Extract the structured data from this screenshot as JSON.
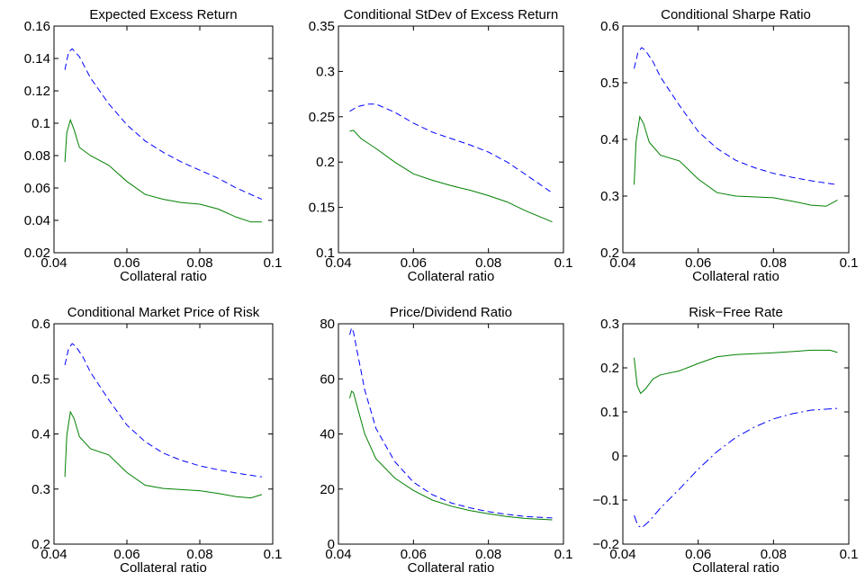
{
  "chart_data": [
    {
      "type": "line",
      "title": "Expected Excess Return",
      "xlabel": "Collateral ratio",
      "ylabel": "",
      "xlim": [
        0.04,
        0.1
      ],
      "ylim": [
        0.02,
        0.16
      ],
      "xticks": [
        "0.04",
        "0.06",
        "0.08",
        "0.1"
      ],
      "yticks": [
        "0.02",
        "0.04",
        "0.06",
        "0.08",
        "0.1",
        "0.12",
        "0.14",
        "0.16"
      ],
      "grid": false,
      "series": [
        {
          "style": "dashed",
          "color": "#0000ff",
          "points": [
            [
              0.043,
              0.133
            ],
            [
              0.044,
              0.144
            ],
            [
              0.045,
              0.146
            ],
            [
              0.047,
              0.141
            ],
            [
              0.05,
              0.128
            ],
            [
              0.055,
              0.112
            ],
            [
              0.06,
              0.099
            ],
            [
              0.065,
              0.089
            ],
            [
              0.07,
              0.082
            ],
            [
              0.075,
              0.076
            ],
            [
              0.08,
              0.071
            ],
            [
              0.085,
              0.066
            ],
            [
              0.09,
              0.06
            ],
            [
              0.097,
              0.053
            ]
          ]
        },
        {
          "style": "solid",
          "color": "#008000",
          "points": [
            [
              0.043,
              0.076
            ],
            [
              0.0435,
              0.094
            ],
            [
              0.0445,
              0.102
            ],
            [
              0.0455,
              0.096
            ],
            [
              0.047,
              0.085
            ],
            [
              0.05,
              0.08
            ],
            [
              0.055,
              0.074
            ],
            [
              0.06,
              0.064
            ],
            [
              0.065,
              0.056
            ],
            [
              0.07,
              0.053
            ],
            [
              0.075,
              0.051
            ],
            [
              0.08,
              0.05
            ],
            [
              0.085,
              0.047
            ],
            [
              0.09,
              0.042
            ],
            [
              0.094,
              0.039
            ],
            [
              0.097,
              0.039
            ]
          ]
        }
      ]
    },
    {
      "type": "line",
      "title": "Conditional StDev of Excess Return",
      "xlabel": "Collateral ratio",
      "ylabel": "",
      "xlim": [
        0.04,
        0.1
      ],
      "ylim": [
        0.1,
        0.35
      ],
      "xticks": [
        "0.04",
        "0.06",
        "0.08",
        "0.1"
      ],
      "yticks": [
        "0.1",
        "0.15",
        "0.2",
        "0.25",
        "0.3",
        "0.35"
      ],
      "grid": false,
      "series": [
        {
          "style": "dashed",
          "color": "#0000ff",
          "points": [
            [
              0.043,
              0.256
            ],
            [
              0.045,
              0.261
            ],
            [
              0.048,
              0.264
            ],
            [
              0.05,
              0.264
            ],
            [
              0.055,
              0.255
            ],
            [
              0.06,
              0.243
            ],
            [
              0.065,
              0.233
            ],
            [
              0.07,
              0.226
            ],
            [
              0.075,
              0.219
            ],
            [
              0.08,
              0.211
            ],
            [
              0.085,
              0.2
            ],
            [
              0.09,
              0.186
            ],
            [
              0.097,
              0.166
            ]
          ]
        },
        {
          "style": "solid",
          "color": "#008000",
          "points": [
            [
              0.043,
              0.234
            ],
            [
              0.044,
              0.235
            ],
            [
              0.046,
              0.226
            ],
            [
              0.05,
              0.215
            ],
            [
              0.055,
              0.2
            ],
            [
              0.06,
              0.187
            ],
            [
              0.065,
              0.18
            ],
            [
              0.07,
              0.174
            ],
            [
              0.075,
              0.169
            ],
            [
              0.08,
              0.163
            ],
            [
              0.085,
              0.156
            ],
            [
              0.09,
              0.146
            ],
            [
              0.097,
              0.134
            ]
          ]
        }
      ]
    },
    {
      "type": "line",
      "title": "Conditional Sharpe Ratio",
      "xlabel": "Collateral ratio",
      "ylabel": "",
      "xlim": [
        0.04,
        0.1
      ],
      "ylim": [
        0.2,
        0.6
      ],
      "xticks": [
        "0.04",
        "0.06",
        "0.08",
        "0.1"
      ],
      "yticks": [
        "0.2",
        "0.3",
        "0.4",
        "0.5",
        "0.6"
      ],
      "grid": false,
      "series": [
        {
          "style": "dashed",
          "color": "#0000ff",
          "points": [
            [
              0.043,
              0.525
            ],
            [
              0.044,
              0.553
            ],
            [
              0.045,
              0.562
            ],
            [
              0.046,
              0.557
            ],
            [
              0.048,
              0.537
            ],
            [
              0.05,
              0.51
            ],
            [
              0.055,
              0.46
            ],
            [
              0.06,
              0.414
            ],
            [
              0.065,
              0.384
            ],
            [
              0.07,
              0.363
            ],
            [
              0.075,
              0.35
            ],
            [
              0.08,
              0.34
            ],
            [
              0.085,
              0.333
            ],
            [
              0.09,
              0.327
            ],
            [
              0.097,
              0.32
            ]
          ]
        },
        {
          "style": "solid",
          "color": "#008000",
          "points": [
            [
              0.043,
              0.32
            ],
            [
              0.0435,
              0.395
            ],
            [
              0.0445,
              0.44
            ],
            [
              0.0455,
              0.428
            ],
            [
              0.047,
              0.395
            ],
            [
              0.05,
              0.372
            ],
            [
              0.055,
              0.362
            ],
            [
              0.06,
              0.33
            ],
            [
              0.065,
              0.306
            ],
            [
              0.07,
              0.3
            ],
            [
              0.08,
              0.297
            ],
            [
              0.085,
              0.291
            ],
            [
              0.09,
              0.284
            ],
            [
              0.094,
              0.282
            ],
            [
              0.097,
              0.293
            ]
          ]
        }
      ]
    },
    {
      "type": "line",
      "title": "Conditional Market Price of Risk",
      "xlabel": "Collateral ratio",
      "ylabel": "",
      "xlim": [
        0.04,
        0.1
      ],
      "ylim": [
        0.2,
        0.6
      ],
      "xticks": [
        "0.04",
        "0.06",
        "0.08",
        "0.1"
      ],
      "yticks": [
        "0.2",
        "0.3",
        "0.4",
        "0.5",
        "0.6"
      ],
      "grid": false,
      "series": [
        {
          "style": "dashed",
          "color": "#0000ff",
          "points": [
            [
              0.043,
              0.525
            ],
            [
              0.044,
              0.555
            ],
            [
              0.045,
              0.564
            ],
            [
              0.046,
              0.559
            ],
            [
              0.048,
              0.539
            ],
            [
              0.05,
              0.512
            ],
            [
              0.055,
              0.462
            ],
            [
              0.06,
              0.416
            ],
            [
              0.065,
              0.386
            ],
            [
              0.07,
              0.365
            ],
            [
              0.075,
              0.352
            ],
            [
              0.08,
              0.342
            ],
            [
              0.085,
              0.335
            ],
            [
              0.09,
              0.329
            ],
            [
              0.097,
              0.322
            ]
          ]
        },
        {
          "style": "solid",
          "color": "#008000",
          "points": [
            [
              0.043,
              0.322
            ],
            [
              0.0435,
              0.397
            ],
            [
              0.0445,
              0.44
            ],
            [
              0.0455,
              0.428
            ],
            [
              0.047,
              0.395
            ],
            [
              0.05,
              0.373
            ],
            [
              0.055,
              0.362
            ],
            [
              0.06,
              0.33
            ],
            [
              0.065,
              0.307
            ],
            [
              0.07,
              0.301
            ],
            [
              0.08,
              0.297
            ],
            [
              0.085,
              0.292
            ],
            [
              0.09,
              0.286
            ],
            [
              0.094,
              0.284
            ],
            [
              0.097,
              0.29
            ]
          ]
        }
      ]
    },
    {
      "type": "line",
      "title": "Price/Dividend Ratio",
      "xlabel": "Collateral ratio",
      "ylabel": "",
      "xlim": [
        0.04,
        0.1
      ],
      "ylim": [
        0,
        80
      ],
      "xticks": [
        "0.04",
        "0.06",
        "0.08",
        "0.1"
      ],
      "yticks": [
        "0",
        "20",
        "40",
        "60",
        "80"
      ],
      "grid": false,
      "series": [
        {
          "style": "dashed",
          "color": "#0000ff",
          "points": [
            [
              0.043,
              76
            ],
            [
              0.0435,
              78.5
            ],
            [
              0.044,
              77
            ],
            [
              0.045,
              70
            ],
            [
              0.047,
              56
            ],
            [
              0.05,
              42
            ],
            [
              0.055,
              30
            ],
            [
              0.06,
              22.5
            ],
            [
              0.065,
              18
            ],
            [
              0.07,
              15
            ],
            [
              0.075,
              13.2
            ],
            [
              0.08,
              11.8
            ],
            [
              0.085,
              10.8
            ],
            [
              0.09,
              10
            ],
            [
              0.097,
              9.5
            ]
          ]
        },
        {
          "style": "solid",
          "color": "#008000",
          "points": [
            [
              0.043,
              53
            ],
            [
              0.0435,
              55.5
            ],
            [
              0.044,
              55
            ],
            [
              0.045,
              50
            ],
            [
              0.047,
              40
            ],
            [
              0.05,
              31
            ],
            [
              0.055,
              24
            ],
            [
              0.06,
              19.5
            ],
            [
              0.065,
              16
            ],
            [
              0.07,
              13.8
            ],
            [
              0.075,
              12.2
            ],
            [
              0.08,
              11
            ],
            [
              0.085,
              10
            ],
            [
              0.09,
              9.3
            ],
            [
              0.097,
              8.8
            ]
          ]
        }
      ]
    },
    {
      "type": "line",
      "title": "Risk−Free Rate",
      "xlabel": "Collateral ratio",
      "ylabel": "",
      "xlim": [
        0.04,
        0.1
      ],
      "ylim": [
        -0.2,
        0.3
      ],
      "xticks": [
        "0.04",
        "0.06",
        "0.08",
        "0.1"
      ],
      "yticks": [
        "−0.2",
        "−0.1",
        "0",
        "0.1",
        "0.2",
        "0.3"
      ],
      "grid": false,
      "series": [
        {
          "style": "dashdot",
          "color": "#0000ff",
          "points": [
            [
              0.043,
              -0.135
            ],
            [
              0.044,
              -0.158
            ],
            [
              0.045,
              -0.163
            ],
            [
              0.047,
              -0.148
            ],
            [
              0.05,
              -0.118
            ],
            [
              0.055,
              -0.075
            ],
            [
              0.06,
              -0.03
            ],
            [
              0.065,
              0.01
            ],
            [
              0.07,
              0.042
            ],
            [
              0.075,
              0.066
            ],
            [
              0.08,
              0.084
            ],
            [
              0.085,
              0.096
            ],
            [
              0.09,
              0.104
            ],
            [
              0.097,
              0.108
            ]
          ]
        },
        {
          "style": "solid",
          "color": "#008000",
          "points": [
            [
              0.043,
              0.223
            ],
            [
              0.0438,
              0.16
            ],
            [
              0.0447,
              0.142
            ],
            [
              0.046,
              0.152
            ],
            [
              0.048,
              0.175
            ],
            [
              0.05,
              0.184
            ],
            [
              0.055,
              0.193
            ],
            [
              0.06,
              0.21
            ],
            [
              0.065,
              0.225
            ],
            [
              0.07,
              0.23
            ],
            [
              0.075,
              0.232
            ],
            [
              0.08,
              0.234
            ],
            [
              0.085,
              0.237
            ],
            [
              0.09,
              0.24
            ],
            [
              0.095,
              0.24
            ],
            [
              0.097,
              0.235
            ]
          ]
        }
      ]
    }
  ]
}
